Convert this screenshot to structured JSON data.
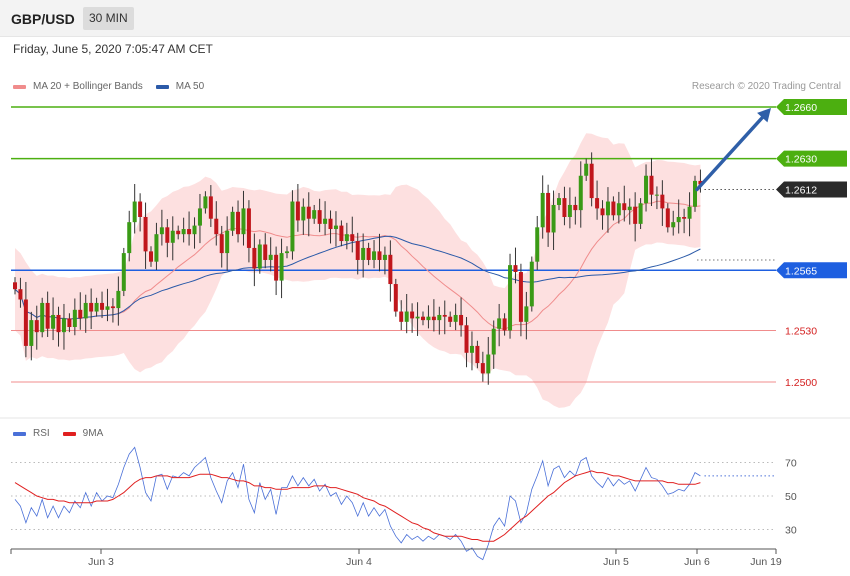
{
  "header": {
    "symbol": "GBP/USD",
    "timeframe": "30 MIN"
  },
  "date_line": "Friday, June 5, 2020 7:05:47 AM CET",
  "legend": {
    "ma20": {
      "label": "MA 20 + Bollinger Bands",
      "color": "#f08c8c"
    },
    "ma50": {
      "label": "MA 50",
      "color": "#2b5aa8"
    }
  },
  "credit": "Research © 2020 Trading Central",
  "rsi_legend": {
    "rsi": {
      "label": "RSI",
      "color": "#4a70d8"
    },
    "ma9": {
      "label": "9MA",
      "color": "#e02020"
    }
  },
  "chart_data": [
    {
      "type": "candlestick",
      "title": "GBP/USD",
      "timeframe": "30 MIN",
      "ylim": [
        1.2475,
        1.2675
      ],
      "x_tick_labels": [
        "Jun 3",
        "Jun 4",
        "Jun 5",
        "Jun 6",
        "Jun 19"
      ],
      "grid": false,
      "levels": [
        {
          "value": "1.2660",
          "price": 1.266,
          "style": "resistance",
          "color": "#4caf10",
          "text_color": "#ffffff",
          "tag": true
        },
        {
          "value": "1.2630",
          "price": 1.263,
          "style": "resistance",
          "color": "#4caf10",
          "text_color": "#ffffff",
          "tag": true
        },
        {
          "value": "1.2612",
          "price": 1.2612,
          "style": "current",
          "color": "#2a2a2a",
          "text_color": "#ffffff",
          "tag": true
        },
        {
          "value": "1.2565",
          "price": 1.2565,
          "style": "pivot",
          "color": "#1e5fe0",
          "text_color": "#ffffff",
          "tag": true
        },
        {
          "value": "1.2530",
          "price": 1.253,
          "style": "support",
          "color": "#f08c8c",
          "text_color": "#d42020",
          "tag": false
        },
        {
          "value": "1.2500",
          "price": 1.25,
          "style": "support",
          "color": "#f08c8c",
          "text_color": "#d42020",
          "tag": false
        }
      ],
      "forecast_arrow": {
        "from_price": 1.2612,
        "to_price": 1.266,
        "color": "#2f5fa8"
      },
      "closes": [
        1.2554,
        1.2548,
        1.2521,
        1.2536,
        1.2529,
        1.2546,
        1.2531,
        1.2539,
        1.2529,
        1.2537,
        1.2532,
        1.2542,
        1.2537,
        1.2546,
        1.2541,
        1.2546,
        1.2542,
        1.2544,
        1.2543,
        1.2553,
        1.2575,
        1.2593,
        1.2605,
        1.2596,
        1.2576,
        1.257,
        1.2586,
        1.259,
        1.2581,
        1.2588,
        1.2586,
        1.2589,
        1.2586,
        1.2591,
        1.2601,
        1.2608,
        1.2595,
        1.2586,
        1.2575,
        1.2588,
        1.2599,
        1.2586,
        1.2601,
        1.2578,
        1.2566,
        1.258,
        1.2571,
        1.2574,
        1.2559,
        1.2575,
        1.2576,
        1.2605,
        1.2594,
        1.2602,
        1.2595,
        1.26,
        1.2592,
        1.2595,
        1.2589,
        1.2591,
        1.2582,
        1.2586,
        1.2582,
        1.2571,
        1.2578,
        1.2571,
        1.2576,
        1.2571,
        1.2574,
        1.2557,
        1.2541,
        1.2535,
        1.2541,
        1.2537,
        1.2538,
        1.2536,
        1.2538,
        1.2536,
        1.2539,
        1.2538,
        1.2535,
        1.2539,
        1.2533,
        1.2517,
        1.2521,
        1.2511,
        1.2505,
        1.2516,
        1.2531,
        1.2537,
        1.253,
        1.2568,
        1.2564,
        1.2535,
        1.2544,
        1.257,
        1.259,
        1.261,
        1.2587,
        1.2603,
        1.2607,
        1.2596,
        1.2603,
        1.26,
        1.262,
        1.2627,
        1.2607,
        1.2601,
        1.2597,
        1.2605,
        1.2597,
        1.2604,
        1.26,
        1.2602,
        1.2592,
        1.2604,
        1.262,
        1.2609,
        1.2609,
        1.2601,
        1.259,
        1.2593,
        1.2596,
        1.2595,
        1.2602,
        1.2617,
        1.2615
      ]
    },
    {
      "type": "line",
      "title": "RSI",
      "ylim": [
        15,
        85
      ],
      "y_ticks": [
        "70",
        "50",
        "30"
      ],
      "series": [
        {
          "name": "RSI",
          "values": [
            48,
            44,
            34,
            43,
            38,
            48,
            37,
            44,
            37,
            44,
            40,
            47,
            43,
            52,
            44,
            52,
            47,
            50,
            49,
            57,
            67,
            75,
            79,
            67,
            52,
            47,
            62,
            63,
            54,
            62,
            61,
            64,
            62,
            67,
            70,
            73,
            61,
            53,
            46,
            59,
            64,
            55,
            69,
            48,
            40,
            58,
            48,
            54,
            39,
            55,
            55,
            62,
            56,
            61,
            56,
            60,
            53,
            57,
            50,
            52,
            45,
            50,
            46,
            38,
            46,
            38,
            43,
            38,
            42,
            32,
            26,
            22,
            27,
            24,
            26,
            23,
            26,
            24,
            27,
            26,
            24,
            27,
            23,
            17,
            19,
            14,
            12,
            21,
            32,
            37,
            32,
            50,
            47,
            34,
            40,
            54,
            62,
            71,
            56,
            66,
            68,
            61,
            65,
            62,
            71,
            73,
            62,
            58,
            55,
            61,
            56,
            60,
            57,
            59,
            53,
            60,
            67,
            61,
            60,
            56,
            51,
            52,
            54,
            53,
            57,
            64,
            62
          ]
        },
        {
          "name": "9MA",
          "values": [
            58,
            56,
            54,
            52,
            50,
            49,
            48,
            48,
            47,
            47,
            46,
            46,
            46,
            46,
            46,
            47,
            47,
            47,
            48,
            50,
            52,
            55,
            58,
            60,
            61,
            61,
            62,
            62,
            62,
            61,
            61,
            61,
            61,
            62,
            63,
            63,
            63,
            62,
            61,
            61,
            60,
            59,
            59,
            58,
            56,
            56,
            55,
            55,
            54,
            54,
            54,
            55,
            55,
            55,
            55,
            56,
            56,
            56,
            55,
            55,
            54,
            53,
            52,
            51,
            49,
            48,
            47,
            45,
            44,
            42,
            40,
            38,
            36,
            34,
            33,
            31,
            30,
            28,
            27,
            26,
            26,
            26,
            26,
            25,
            24,
            24,
            23,
            23,
            23,
            25,
            27,
            30,
            33,
            36,
            38,
            41,
            44,
            47,
            50,
            52,
            55,
            58,
            60,
            62,
            63,
            64,
            65,
            64,
            64,
            63,
            62,
            62,
            61,
            60,
            59,
            59,
            59,
            59,
            59,
            59,
            58,
            58,
            57,
            57,
            57,
            57,
            58
          ]
        }
      ]
    }
  ]
}
